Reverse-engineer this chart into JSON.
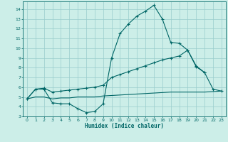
{
  "xlabel": "Humidex (Indice chaleur)",
  "xlim": [
    -0.5,
    23.5
  ],
  "ylim": [
    3,
    14.8
  ],
  "yticks": [
    3,
    4,
    5,
    6,
    7,
    8,
    9,
    10,
    11,
    12,
    13,
    14
  ],
  "xticks": [
    0,
    1,
    2,
    3,
    4,
    5,
    6,
    7,
    8,
    9,
    10,
    11,
    12,
    13,
    14,
    15,
    16,
    17,
    18,
    19,
    20,
    21,
    22,
    23
  ],
  "line_color": "#006666",
  "bg_color": "#cceee8",
  "grid_color": "#99cccc",
  "series1_x": [
    0,
    1,
    2,
    3,
    4,
    5,
    6,
    7,
    8,
    9,
    10,
    11,
    12,
    13,
    14,
    15,
    16,
    17,
    18,
    19,
    20,
    21
  ],
  "series1_y": [
    4.8,
    5.8,
    5.8,
    4.4,
    4.3,
    4.3,
    3.8,
    3.4,
    3.5,
    4.3,
    9.0,
    11.5,
    12.5,
    13.3,
    13.8,
    14.4,
    13.0,
    10.6,
    10.5,
    9.8,
    8.1,
    7.5
  ],
  "series2_x": [
    0,
    1,
    2,
    3,
    4,
    5,
    6,
    7,
    8,
    9,
    10,
    11,
    12,
    13,
    14,
    15,
    16,
    17,
    18,
    19,
    20,
    21,
    22,
    23
  ],
  "series2_y": [
    4.8,
    5.8,
    5.9,
    5.5,
    5.6,
    5.7,
    5.8,
    5.9,
    6.0,
    6.2,
    7.0,
    7.3,
    7.6,
    7.9,
    8.2,
    8.5,
    8.8,
    9.0,
    9.2,
    9.8,
    8.2,
    7.5,
    5.8,
    5.6
  ],
  "series3_x": [
    0,
    1,
    2,
    3,
    4,
    5,
    6,
    7,
    8,
    9,
    10,
    11,
    12,
    13,
    14,
    15,
    16,
    17,
    18,
    19,
    20,
    21,
    22,
    23
  ],
  "series3_y": [
    4.8,
    5.0,
    5.0,
    4.8,
    4.9,
    4.9,
    5.0,
    5.0,
    5.0,
    5.1,
    5.15,
    5.2,
    5.25,
    5.3,
    5.35,
    5.4,
    5.45,
    5.5,
    5.5,
    5.5,
    5.5,
    5.5,
    5.55,
    5.6
  ]
}
